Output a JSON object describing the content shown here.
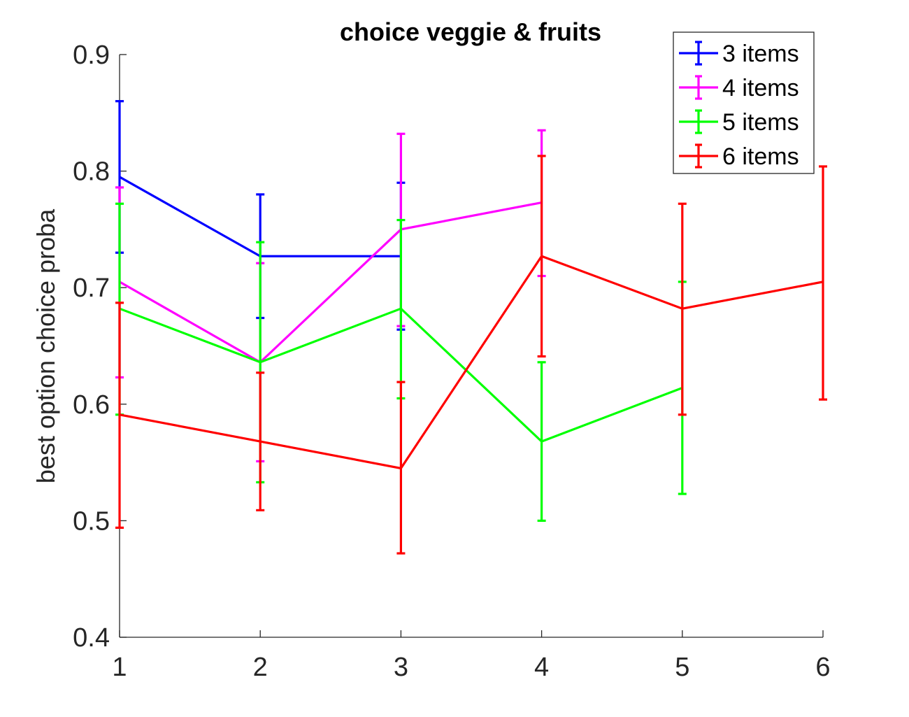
{
  "chart_data": {
    "type": "line",
    "title": "choice veggie & fruits",
    "xlabel": "",
    "ylabel": "best option choice proba",
    "xlim": [
      1,
      6
    ],
    "ylim": [
      0.4,
      0.9
    ],
    "x_ticks": [
      1,
      2,
      3,
      4,
      5,
      6
    ],
    "y_ticks": [
      0.4,
      0.5,
      0.6,
      0.7,
      0.8,
      0.9
    ],
    "grid": false,
    "legend_position": "top-right",
    "error_bars": true,
    "series": [
      {
        "name": "3 items",
        "color": "#0000ff",
        "x": [
          1,
          2,
          3
        ],
        "y": [
          0.795,
          0.727,
          0.727
        ],
        "lower": [
          0.73,
          0.674,
          0.664
        ],
        "upper": [
          0.86,
          0.78,
          0.79
        ]
      },
      {
        "name": "4 items",
        "color": "#ff00ff",
        "x": [
          1,
          2,
          3,
          4
        ],
        "y": [
          0.705,
          0.636,
          0.75,
          0.773
        ],
        "lower": [
          0.623,
          0.551,
          0.667,
          0.71
        ],
        "upper": [
          0.786,
          0.721,
          0.832,
          0.835
        ]
      },
      {
        "name": "5 items",
        "color": "#00ff00",
        "x": [
          1,
          2,
          3,
          4,
          5
        ],
        "y": [
          0.682,
          0.636,
          0.682,
          0.568,
          0.614
        ],
        "lower": [
          0.591,
          0.533,
          0.605,
          0.5,
          0.523
        ],
        "upper": [
          0.772,
          0.739,
          0.758,
          0.636,
          0.705
        ]
      },
      {
        "name": "6 items",
        "color": "#ff0000",
        "x": [
          1,
          2,
          3,
          4,
          5,
          6
        ],
        "y": [
          0.591,
          0.568,
          0.545,
          0.727,
          0.682,
          0.705
        ],
        "lower": [
          0.494,
          0.509,
          0.472,
          0.641,
          0.591,
          0.604
        ],
        "upper": [
          0.687,
          0.627,
          0.619,
          0.813,
          0.772,
          0.804
        ]
      }
    ]
  }
}
